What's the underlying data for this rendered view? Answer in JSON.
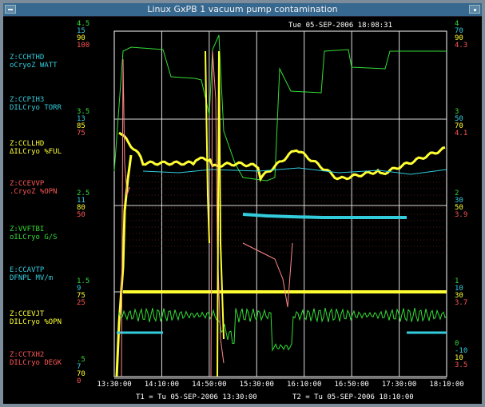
{
  "window": {
    "title": "Linux GxPB 1  vacuum pump contamination",
    "timestamp": "Tue 05-SEP-2006 18:08:31",
    "menu_icon": "window-menu-icon",
    "minimize_icon": "minimize-icon"
  },
  "colors": {
    "green": "#33dd33",
    "cyan": "#33ccdd",
    "yellow": "#ffff33",
    "red": "#ff5555",
    "pink": "#ff8888",
    "grid": "#ffffff",
    "title_bar": "#37688f"
  },
  "channels": [
    {
      "name": "Z:CCHTHD",
      "desc": "oCryoZ  WATT",
      "color": "#33ccdd"
    },
    {
      "name": "Z:CCPIH3",
      "desc": "DILCryo TORR",
      "color": "#33ccdd"
    },
    {
      "name": "Z:CCLLHD",
      "desc": "ΔILCryo %FUL",
      "color": "#ffff33"
    },
    {
      "name": "Z:CCEVVP",
      "desc": ".CryoZ  %OPN",
      "color": "#ff5555"
    },
    {
      "name": "Z:VVFTBI",
      "desc": "oILCryo G/S",
      "color": "#33dd33"
    },
    {
      "name": "E:CCAVTP",
      "desc": "DFNPL   MV/m",
      "color": "#33ccdd"
    },
    {
      "name": "Z:CCEVJT",
      "desc": "DILCryo %OPN",
      "color": "#ffff33"
    },
    {
      "name": "Z:CCTXH2",
      "desc": "DILCryo DEGK",
      "color": "#ff5555"
    }
  ],
  "left_scales": [
    {
      "values": [
        "4.5",
        "15",
        "90",
        "100"
      ]
    },
    {
      "values": [
        "3.5",
        "13",
        "85",
        "75"
      ]
    },
    {
      "values": [
        "2.5",
        "11",
        "80",
        "50"
      ]
    },
    {
      "values": [
        "1.5",
        "9",
        "75",
        "25"
      ]
    },
    {
      "values": [
        ".5",
        "7",
        "70",
        "0"
      ]
    }
  ],
  "right_scales": [
    {
      "values": [
        "4",
        "70",
        "90",
        "4.3"
      ]
    },
    {
      "values": [
        "3",
        "50",
        "70",
        "4.1"
      ]
    },
    {
      "values": [
        "2",
        "30",
        "50",
        "3.9"
      ]
    },
    {
      "values": [
        "1",
        "10",
        "30",
        "3.7"
      ]
    },
    {
      "values": [
        "0",
        "-10",
        "10",
        "3.5"
      ]
    }
  ],
  "x_ticks": [
    "13:30:00",
    "14:10:00",
    "14:50:00",
    "15:30:00",
    "16:10:00",
    "16:50:00",
    "17:30:00",
    "18:10:00"
  ],
  "footer": {
    "t1": "T1 = Tu 05-SEP-2006 13:30:00",
    "t2": "T2 = Tu 05-SEP-2006 18:10:00"
  }
}
